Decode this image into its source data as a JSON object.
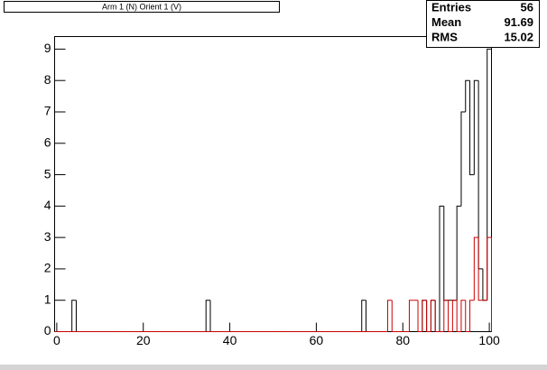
{
  "chart_data": {
    "type": "histogram",
    "title": "Arm 1 (N) Orient 1 (V)",
    "stats": [
      {
        "label": "Entries",
        "value": 56
      },
      {
        "label": "Mean",
        "value": 91.69
      },
      {
        "label": "RMS",
        "value": 15.02
      }
    ],
    "bins": [
      -0.5,
      0.5,
      1.5,
      2.5,
      3.5,
      4.5,
      5.5,
      6.5,
      7.5,
      8.5,
      9.5,
      10.5,
      11.5,
      12.5,
      13.5,
      14.5,
      15.5,
      16.5,
      17.5,
      18.5,
      19.5,
      20.5,
      21.5,
      22.5,
      23.5,
      24.5,
      25.5,
      26.5,
      27.5,
      28.5,
      29.5,
      30.5,
      31.5,
      32.5,
      33.5,
      34.5,
      35.5,
      36.5,
      37.5,
      38.5,
      39.5,
      40.5,
      41.5,
      42.5,
      43.5,
      44.5,
      45.5,
      46.5,
      47.5,
      48.5,
      49.5,
      50.5,
      51.5,
      52.5,
      53.5,
      54.5,
      55.5,
      56.5,
      57.5,
      58.5,
      59.5,
      60.5,
      61.5,
      62.5,
      63.5,
      64.5,
      65.5,
      66.5,
      67.5,
      68.5,
      69.5,
      70.5,
      71.5,
      72.5,
      73.5,
      74.5,
      75.5,
      76.5,
      77.5,
      78.5,
      79.5,
      80.5,
      81.5,
      82.5,
      83.5,
      84.5,
      85.5,
      86.5,
      87.5,
      88.5,
      89.5,
      90.5,
      91.5,
      92.5,
      93.5,
      94.5,
      95.5,
      96.5,
      97.5,
      98.5,
      99.5,
      100.5
    ],
    "series": [
      {
        "color": "#000000",
        "values": [
          0,
          0,
          0,
          0,
          1,
          0,
          0,
          0,
          0,
          0,
          0,
          0,
          0,
          0,
          0,
          0,
          0,
          0,
          0,
          0,
          0,
          0,
          0,
          0,
          0,
          0,
          0,
          0,
          0,
          0,
          0,
          0,
          0,
          0,
          0,
          1,
          0,
          0,
          0,
          0,
          0,
          0,
          0,
          0,
          0,
          0,
          0,
          0,
          0,
          0,
          0,
          0,
          0,
          0,
          0,
          0,
          0,
          0,
          0,
          0,
          0,
          0,
          0,
          0,
          0,
          0,
          0,
          0,
          0,
          0,
          0,
          1,
          0,
          0,
          0,
          0,
          0,
          0,
          0,
          0,
          0,
          0,
          0,
          0,
          0,
          1,
          0,
          1,
          0,
          4,
          1,
          1,
          1,
          4,
          7,
          8,
          5,
          8,
          2,
          1,
          9
        ]
      },
      {
        "color": "#cc0000",
        "values": [
          0,
          0,
          0,
          0,
          0,
          0,
          0,
          0,
          0,
          0,
          0,
          0,
          0,
          0,
          0,
          0,
          0,
          0,
          0,
          0,
          0,
          0,
          0,
          0,
          0,
          0,
          0,
          0,
          0,
          0,
          0,
          0,
          0,
          0,
          0,
          0,
          0,
          0,
          0,
          0,
          0,
          0,
          0,
          0,
          0,
          0,
          0,
          0,
          0,
          0,
          0,
          0,
          0,
          0,
          0,
          0,
          0,
          0,
          0,
          0,
          0,
          0,
          0,
          0,
          0,
          0,
          0,
          0,
          0,
          0,
          0,
          0,
          0,
          0,
          0,
          0,
          0,
          1,
          0,
          0,
          0,
          0,
          1,
          1,
          0,
          1,
          0,
          1,
          0,
          0,
          1,
          0,
          1,
          0,
          1,
          0,
          1,
          3,
          1,
          1,
          3
        ]
      }
    ],
    "xlim": [
      -0.5,
      100.5
    ],
    "xticks": [
      0,
      20,
      40,
      60,
      80,
      100
    ],
    "ylim": [
      0,
      9.4
    ],
    "yticks": [
      0,
      1,
      2,
      3,
      4,
      5,
      6,
      7,
      8,
      9
    ]
  }
}
